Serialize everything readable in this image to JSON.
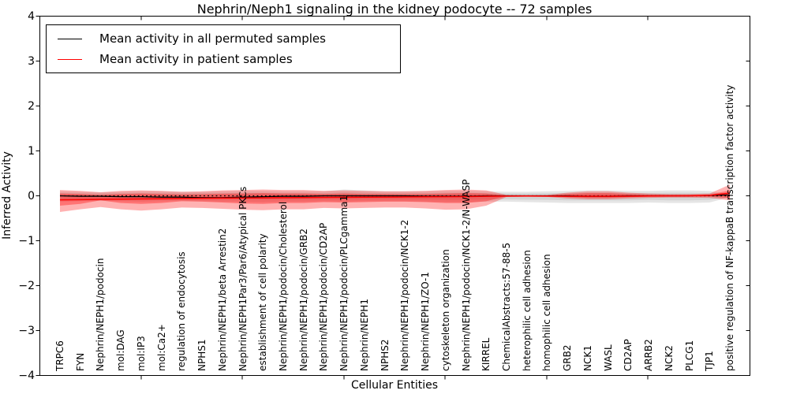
{
  "title": "Nephrin/Neph1 signaling in the kidney podocyte -- 72 samples",
  "legend": {
    "items": [
      {
        "label": "Mean activity in all permuted samples",
        "color": "#000000"
      },
      {
        "label": "Mean activity in patient samples",
        "color": "#ff0000"
      }
    ]
  },
  "axes": {
    "ylabel": "Inferred Activity",
    "xlabel": "Cellular Entities",
    "ytick_labels": [
      "4",
      "3",
      "2",
      "1",
      "0",
      "−1",
      "−2",
      "−3",
      "−4"
    ],
    "ytick_values": [
      4,
      3,
      2,
      1,
      0,
      -1,
      -2,
      -3,
      -4
    ]
  },
  "chart_data": {
    "type": "line",
    "title": "Nephrin/Neph1 signaling in the kidney podocyte -- 72 samples",
    "xlabel": "Cellular Entities",
    "ylabel": "Inferred Activity",
    "ylim": [
      -4,
      4
    ],
    "grid": false,
    "legend_position": "upper left",
    "zero_reference_line": {
      "y": 0,
      "style": "dotted",
      "color": "#000000"
    },
    "categories": [
      "TRPC6",
      "FYN",
      "Nephrin/NEPH1/podocin",
      "mol:DAG",
      "mol:IP3",
      "mol:Ca2+",
      "regulation of endocytosis",
      "NPHS1",
      "Nephrin/NEPH1/beta Arrestin2",
      "Nephrin/NEPH1Par3/Par6/Atypical PKCs",
      "establishment of cell polarity",
      "Nephrin/NEPH1/podocin/Cholesterol",
      "Nephrin/NEPH1/podocin/GRB2",
      "Nephrin/NEPH1/podocin/CD2AP",
      "Nephrin/NEPH1/podocin/PLCgamma1",
      "Nephrin/NEPH1",
      "NPHS2",
      "Nephrin/NEPH1/podocin/NCK1-2",
      "Nephrin/NEPH1/ZO-1",
      "cytoskeleton organization",
      "Nephrin/NEPH1/podocin/NCK1-2/N-WASP",
      "KIRREL",
      "ChemicalAbstracts:57-88-5",
      "heterophilic cell adhesion",
      "homophilic cell adhesion",
      "GRB2",
      "NCK1",
      "WASL",
      "CD2AP",
      "ARRB2",
      "NCK2",
      "PLCG1",
      "TJP1",
      "positive regulation of NF-kappaB transcription factor activity"
    ],
    "series": [
      {
        "name": "Mean activity in all permuted samples",
        "color": "#000000",
        "width": 1.3,
        "values": [
          0.0,
          -0.01,
          -0.01,
          -0.02,
          -0.02,
          -0.03,
          -0.03,
          -0.04,
          -0.04,
          -0.03,
          -0.02,
          -0.01,
          -0.01,
          0.0,
          0.0,
          0.0,
          0.0,
          0.0,
          -0.01,
          -0.01,
          -0.01,
          0.0,
          0.0,
          0.0,
          0.0,
          0.0,
          -0.01,
          -0.01,
          0.0,
          0.0,
          0.0,
          0.0,
          0.01,
          0.02
        ]
      },
      {
        "name": "Mean activity in patient samples",
        "color": "#ff0000",
        "width": 1.5,
        "values": [
          -0.09,
          -0.085,
          -0.08,
          -0.075,
          -0.07,
          -0.065,
          -0.06,
          -0.055,
          -0.05,
          -0.048,
          -0.045,
          -0.042,
          -0.04,
          -0.035,
          -0.032,
          -0.03,
          -0.028,
          -0.025,
          -0.022,
          -0.02,
          -0.018,
          -0.012,
          -0.006,
          -0.005,
          -0.006,
          -0.01,
          -0.012,
          -0.012,
          -0.008,
          -0.005,
          -0.002,
          0.0,
          0.01,
          0.06
        ]
      }
    ],
    "bands": [
      {
        "name": "permuted-range-outer",
        "fill": "rgba(0,0,0,0.10)",
        "upper": [
          0.1,
          0.09,
          0.08,
          0.09,
          0.1,
          0.1,
          0.09,
          0.09,
          0.1,
          0.11,
          0.11,
          0.1,
          0.1,
          0.1,
          0.14,
          0.12,
          0.1,
          0.1,
          0.1,
          0.11,
          0.11,
          0.1,
          0.09,
          0.09,
          0.1,
          0.11,
          0.12,
          0.12,
          0.11,
          0.11,
          0.12,
          0.12,
          0.11,
          0.03
        ],
        "lower": [
          -0.13,
          -0.12,
          -0.11,
          -0.12,
          -0.13,
          -0.12,
          -0.11,
          -0.12,
          -0.13,
          -0.13,
          -0.14,
          -0.13,
          -0.13,
          -0.12,
          -0.13,
          -0.12,
          -0.12,
          -0.12,
          -0.13,
          -0.14,
          -0.14,
          -0.13,
          -0.13,
          -0.14,
          -0.15,
          -0.16,
          -0.16,
          -0.16,
          -0.16,
          -0.15,
          -0.16,
          -0.16,
          -0.15,
          -0.03
        ]
      },
      {
        "name": "permuted-range-inner",
        "fill": "rgba(0,0,0,0.08)",
        "upper": [
          0.06,
          0.055,
          0.05,
          0.055,
          0.06,
          0.06,
          0.055,
          0.055,
          0.06,
          0.065,
          0.065,
          0.06,
          0.06,
          0.06,
          0.08,
          0.07,
          0.06,
          0.06,
          0.06,
          0.065,
          0.065,
          0.06,
          0.055,
          0.055,
          0.06,
          0.065,
          0.07,
          0.07,
          0.065,
          0.065,
          0.07,
          0.07,
          0.065,
          0.02
        ],
        "lower": [
          -0.08,
          -0.075,
          -0.07,
          -0.075,
          -0.08,
          -0.075,
          -0.07,
          -0.075,
          -0.08,
          -0.08,
          -0.085,
          -0.08,
          -0.08,
          -0.075,
          -0.08,
          -0.075,
          -0.075,
          -0.075,
          -0.08,
          -0.085,
          -0.085,
          -0.08,
          -0.08,
          -0.085,
          -0.09,
          -0.1,
          -0.1,
          -0.1,
          -0.1,
          -0.09,
          -0.1,
          -0.1,
          -0.09,
          -0.02
        ]
      },
      {
        "name": "patient-range-outer",
        "fill": "rgba(255,0,0,0.30)",
        "upper": [
          0.13,
          0.11,
          0.08,
          0.11,
          0.12,
          0.11,
          0.09,
          0.1,
          0.12,
          0.13,
          0.14,
          0.13,
          0.13,
          0.11,
          0.12,
          0.11,
          0.1,
          0.1,
          0.11,
          0.13,
          0.14,
          0.12,
          0.02,
          0.015,
          0.02,
          0.07,
          0.1,
          0.1,
          0.07,
          0.05,
          0.04,
          0.04,
          0.05,
          0.25
        ],
        "lower": [
          -0.36,
          -0.3,
          -0.25,
          -0.3,
          -0.33,
          -0.3,
          -0.26,
          -0.27,
          -0.29,
          -0.31,
          -0.32,
          -0.3,
          -0.3,
          -0.27,
          -0.28,
          -0.27,
          -0.26,
          -0.26,
          -0.28,
          -0.31,
          -0.3,
          -0.22,
          -0.025,
          -0.02,
          -0.025,
          -0.06,
          -0.08,
          -0.08,
          -0.06,
          -0.045,
          -0.04,
          -0.04,
          -0.045,
          -0.1
        ]
      },
      {
        "name": "patient-range-inner",
        "fill": "rgba(255,0,0,0.35)",
        "upper": [
          0.05,
          0.04,
          0.02,
          0.04,
          0.05,
          0.04,
          0.03,
          0.035,
          0.045,
          0.05,
          0.06,
          0.05,
          0.05,
          0.04,
          0.05,
          0.04,
          0.04,
          0.035,
          0.04,
          0.05,
          0.06,
          0.05,
          0.008,
          0.006,
          0.008,
          0.04,
          0.06,
          0.06,
          0.04,
          0.025,
          0.02,
          0.02,
          0.025,
          0.12
        ],
        "lower": [
          -0.22,
          -0.18,
          -0.1,
          -0.16,
          -0.18,
          -0.16,
          -0.12,
          -0.13,
          -0.15,
          -0.17,
          -0.18,
          -0.16,
          -0.16,
          -0.14,
          -0.15,
          -0.14,
          -0.13,
          -0.13,
          -0.14,
          -0.16,
          -0.16,
          -0.12,
          -0.01,
          -0.008,
          -0.01,
          -0.03,
          -0.045,
          -0.045,
          -0.03,
          -0.02,
          -0.018,
          -0.018,
          -0.02,
          -0.05
        ]
      }
    ]
  }
}
